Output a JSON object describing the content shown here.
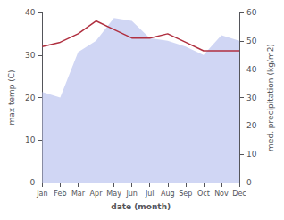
{
  "chart_data": {
    "type": "line",
    "xlabel": "date (month)",
    "ylabel": "max temp (C)",
    "y2label": "med. precipitation (kg/m2)",
    "categories": [
      "Jan",
      "Feb",
      "Mar",
      "Apr",
      "May",
      "Jun",
      "Jul",
      "Aug",
      "Sep",
      "Oct",
      "Nov",
      "Dec"
    ],
    "series": [
      {
        "type": "area",
        "color": "#c0c8f0",
        "axis": "y2",
        "values": [
          32,
          30,
          46,
          50,
          58,
          57,
          51,
          50,
          48,
          45,
          52,
          50
        ]
      },
      {
        "type": "line",
        "color": "#b03040",
        "axis": "y",
        "values": [
          32,
          33,
          35,
          38,
          36,
          34,
          34,
          35,
          33,
          31,
          31,
          31
        ]
      }
    ],
    "ylim": [
      0,
      40
    ],
    "yticks": [
      0,
      10,
      20,
      30,
      40
    ],
    "y2lim": [
      0,
      60
    ],
    "y2ticks": [
      0,
      10,
      20,
      30,
      40,
      50,
      60
    ],
    "grid": false
  }
}
